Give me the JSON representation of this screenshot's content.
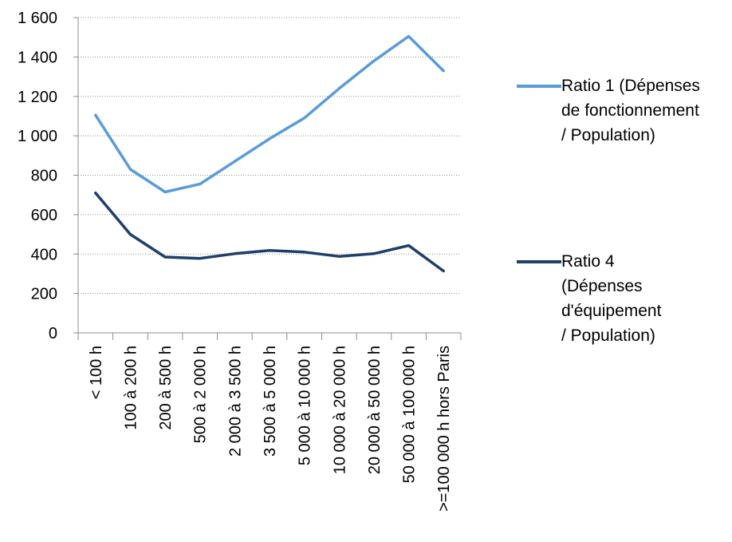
{
  "chart_data": {
    "type": "line",
    "title": "",
    "xlabel": "",
    "ylabel": "",
    "ylim": [
      0,
      1600
    ],
    "yticks": [
      0,
      200,
      400,
      600,
      800,
      1000,
      1200,
      1400,
      1600
    ],
    "ytick_labels": [
      "0",
      "200",
      "400",
      "600",
      "800",
      "1 000",
      "1 200",
      "1 400",
      "1 600"
    ],
    "grid": true,
    "legend_position": "right",
    "categories": [
      "< 100 h",
      "100 à 200 h",
      "200 à 500 h",
      "500 à 2 000 h",
      "2 000 à 3 500 h",
      "3 500 à 5 000 h",
      "5 000 à 10 000 h",
      "10 000 à 20 000 h",
      "20 000 à 50 000 h",
      "50 000 à 100 000 h",
      ">=100 000 h hors Paris"
    ],
    "series": [
      {
        "name": "Ratio 1 (Dépenses de fonctionnement / Population)",
        "color": "#5b9bd5",
        "values": [
          1105,
          830,
          715,
          755,
          870,
          985,
          1090,
          1240,
          1380,
          1505,
          1330
        ]
      },
      {
        "name": "Ratio 4 (Dépenses d'équipement / Population)",
        "color": "#1f3f66",
        "values": [
          710,
          500,
          385,
          378,
          402,
          418,
          410,
          388,
          402,
          443,
          314
        ]
      }
    ]
  },
  "legend": [
    {
      "lines": [
        "Ratio 1 (Dépenses",
        "de fonctionnement",
        "/ Population)"
      ],
      "color": "#5b9bd5"
    },
    {
      "lines": [
        "Ratio 4",
        "(Dépenses",
        "d'équipement",
        "/ Population)"
      ],
      "color": "#1f3f66"
    }
  ]
}
